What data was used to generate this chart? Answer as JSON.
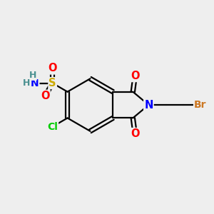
{
  "bg_color": "#eeeeee",
  "atom_colors": {
    "C": "#000000",
    "H": "#4a9090",
    "N": "#0000ff",
    "O": "#ff0000",
    "S": "#ccaa00",
    "Cl": "#00cc00",
    "Br": "#cc7722"
  },
  "figsize": [
    3.0,
    3.0
  ],
  "dpi": 100,
  "lw": 1.6,
  "dbl_off": 0.09
}
